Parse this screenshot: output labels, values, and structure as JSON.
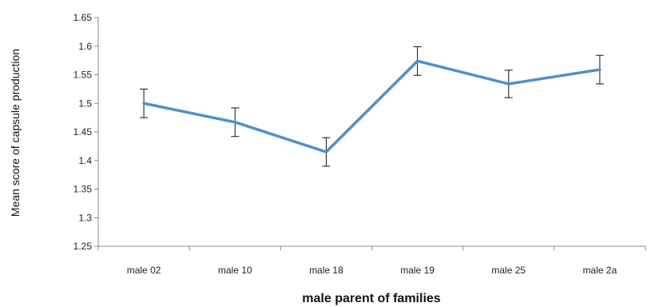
{
  "chart_data": {
    "type": "line",
    "xlabel": "male parent of families",
    "ylabel": "Mean score of capsule production",
    "categories": [
      "male 02",
      "male 10",
      "male 18",
      "male 19",
      "male 25",
      "male 2a"
    ],
    "series": [
      {
        "values": [
          1.5,
          1.467,
          1.415,
          1.574,
          1.534,
          1.559
        ],
        "error": [
          0.025,
          0.025,
          0.025,
          0.025,
          0.024,
          0.025
        ],
        "color": "#4f8fc8"
      }
    ],
    "ylim": [
      1.25,
      1.65
    ],
    "yticks": [
      "1.25",
      "1.3",
      "1.35",
      "1.4",
      "1.45",
      "1.5",
      "1.55",
      "1.6",
      "1.65"
    ],
    "grid": false,
    "legend": "none"
  }
}
